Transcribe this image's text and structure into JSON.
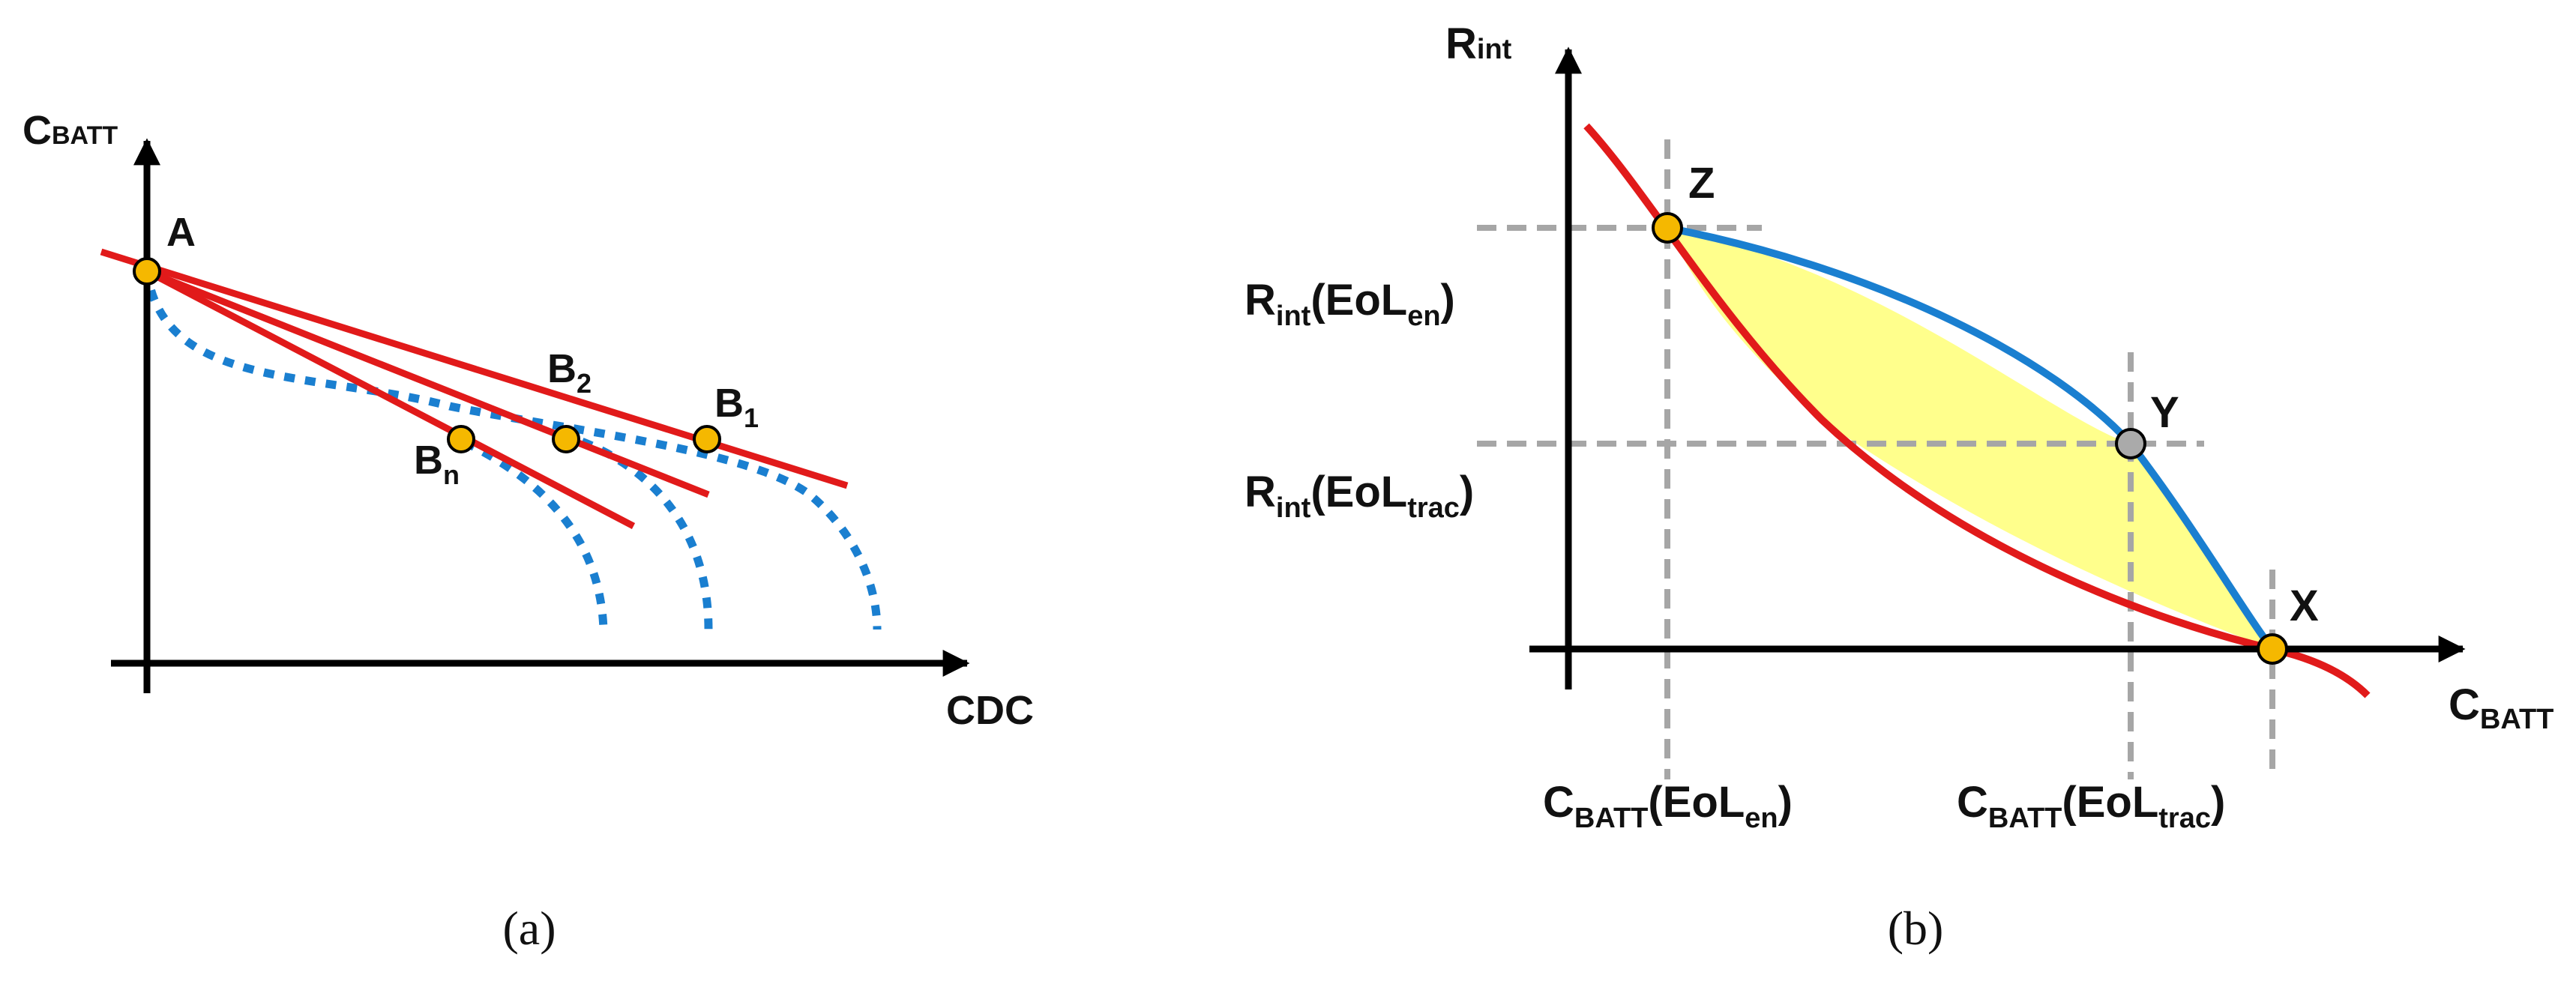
{
  "colors": {
    "axis": "#000000",
    "red_line": "#e11a1a",
    "blue_curve": "#1a7fd0",
    "dotted_curve": "#1a7fd0",
    "yellow_fill": "#ffff8c",
    "point_orange": "#f5b800",
    "point_grey": "#aaaaaa",
    "guide_dash": "#a6a6a6"
  },
  "panel_a": {
    "caption": "(a)",
    "y_axis": {
      "main": "C",
      "sub": "BATT"
    },
    "x_axis": "CDC",
    "point_a": "A",
    "point_b1": {
      "main": "B",
      "sub": "1"
    },
    "point_b2": {
      "main": "B",
      "sub": "2"
    },
    "point_bn": {
      "main": "B",
      "sub": "n"
    }
  },
  "panel_b": {
    "caption": "(b)",
    "y_axis": {
      "main": "R",
      "sub": "int"
    },
    "x_axis": {
      "main": "C",
      "sub": "BATT"
    },
    "point_x": "X",
    "point_y": "Y",
    "point_z": "Z",
    "r_en": {
      "main": "R",
      "sub": "int",
      "paren": "(EoL",
      "sub2": "en",
      "close": ")"
    },
    "r_trac": {
      "main": "R",
      "sub": "int",
      "paren": "(EoL",
      "sub2": "trac",
      "close": ")"
    },
    "c_en": {
      "main": "C",
      "sub": "BATT",
      "paren": "(EoL",
      "sub2": "en",
      "close": ")"
    },
    "c_trac": {
      "main": "C",
      "sub": "BATT",
      "paren": "(EoL",
      "sub2": "trac",
      "close": ")"
    }
  }
}
